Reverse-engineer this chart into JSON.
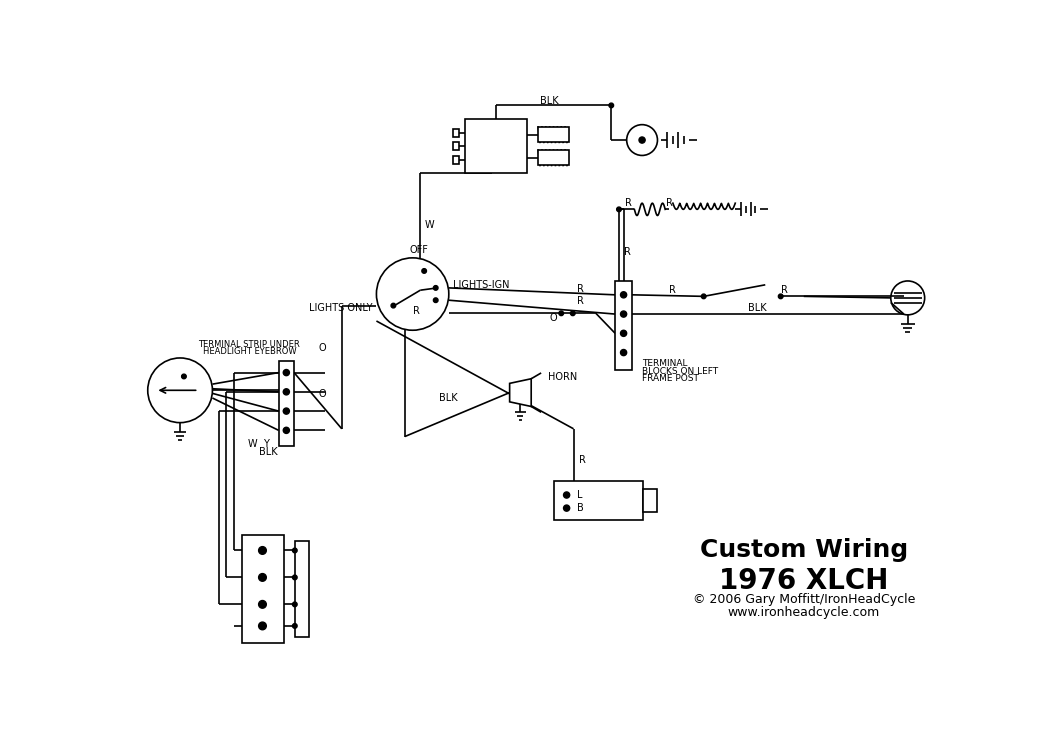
{
  "title": "Custom Wiring",
  "subtitle": "1976 XLCH",
  "copyright": "© 2006 Gary Moffitt/IronHeadCycle",
  "website": "www.ironheadcycle.com",
  "bg_color": "#ffffff",
  "line_color": "#000000",
  "title_fontsize": 18,
  "subtitle_fontsize": 20,
  "copyright_fontsize": 9,
  "website_fontsize": 9
}
